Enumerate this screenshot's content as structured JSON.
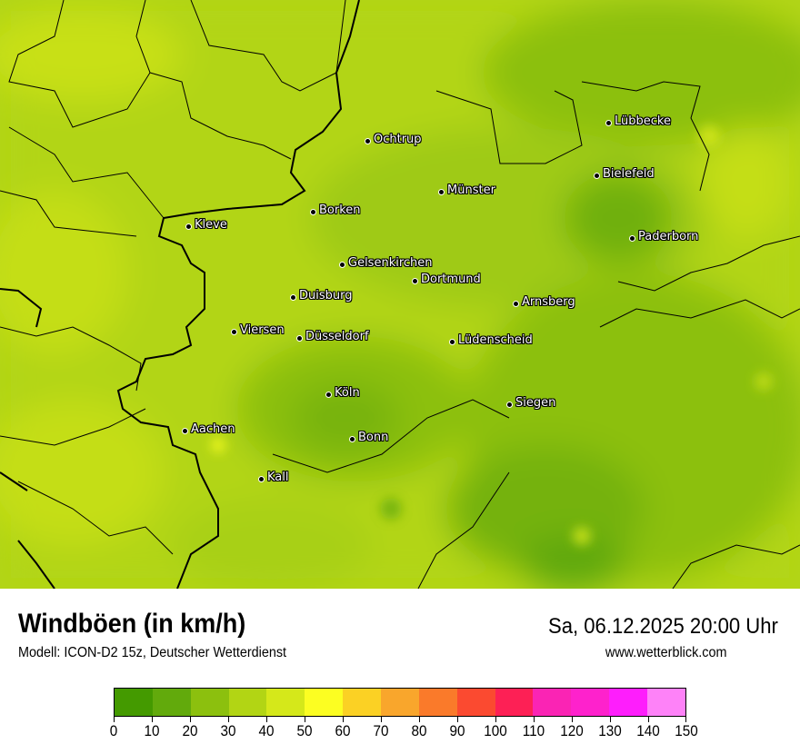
{
  "map": {
    "cities": [
      "Lübbecke",
      "Ochtrup",
      "Bielefeld",
      "Münster",
      "Borken",
      "Kleve",
      "Paderborn",
      "Gelsenkirchen",
      "Dortmund",
      "Duisburg",
      "Arnsberg",
      "Viersen",
      "Düsseldorf",
      "Lüdenscheid",
      "Köln",
      "Siegen",
      "Aachen",
      "Bonn",
      "Kall"
    ]
  },
  "header": {
    "title": "Windböen (in km/h)",
    "subtitle": "Modell: ICON-D2 15z, Deutscher Wetterdienst",
    "datetime": "Sa, 06.12.2025 20:00 Uhr",
    "website": "www.wetterblick.com"
  },
  "legend": {
    "unit": "km/h",
    "ticks": [
      "0",
      "10",
      "20",
      "30",
      "40",
      "50",
      "60",
      "70",
      "80",
      "90",
      "100",
      "110",
      "120",
      "130",
      "140",
      "150"
    ],
    "colors": [
      "#449a00",
      "#62aa0c",
      "#8cc00e",
      "#b2d514",
      "#d5e81a",
      "#fcfe22",
      "#fbd124",
      "#f9a62c",
      "#fa7a2a",
      "#fb4a30",
      "#fd2055",
      "#fa24b4",
      "#fe22cc",
      "#fe1efc",
      "#fe82f8"
    ]
  }
}
